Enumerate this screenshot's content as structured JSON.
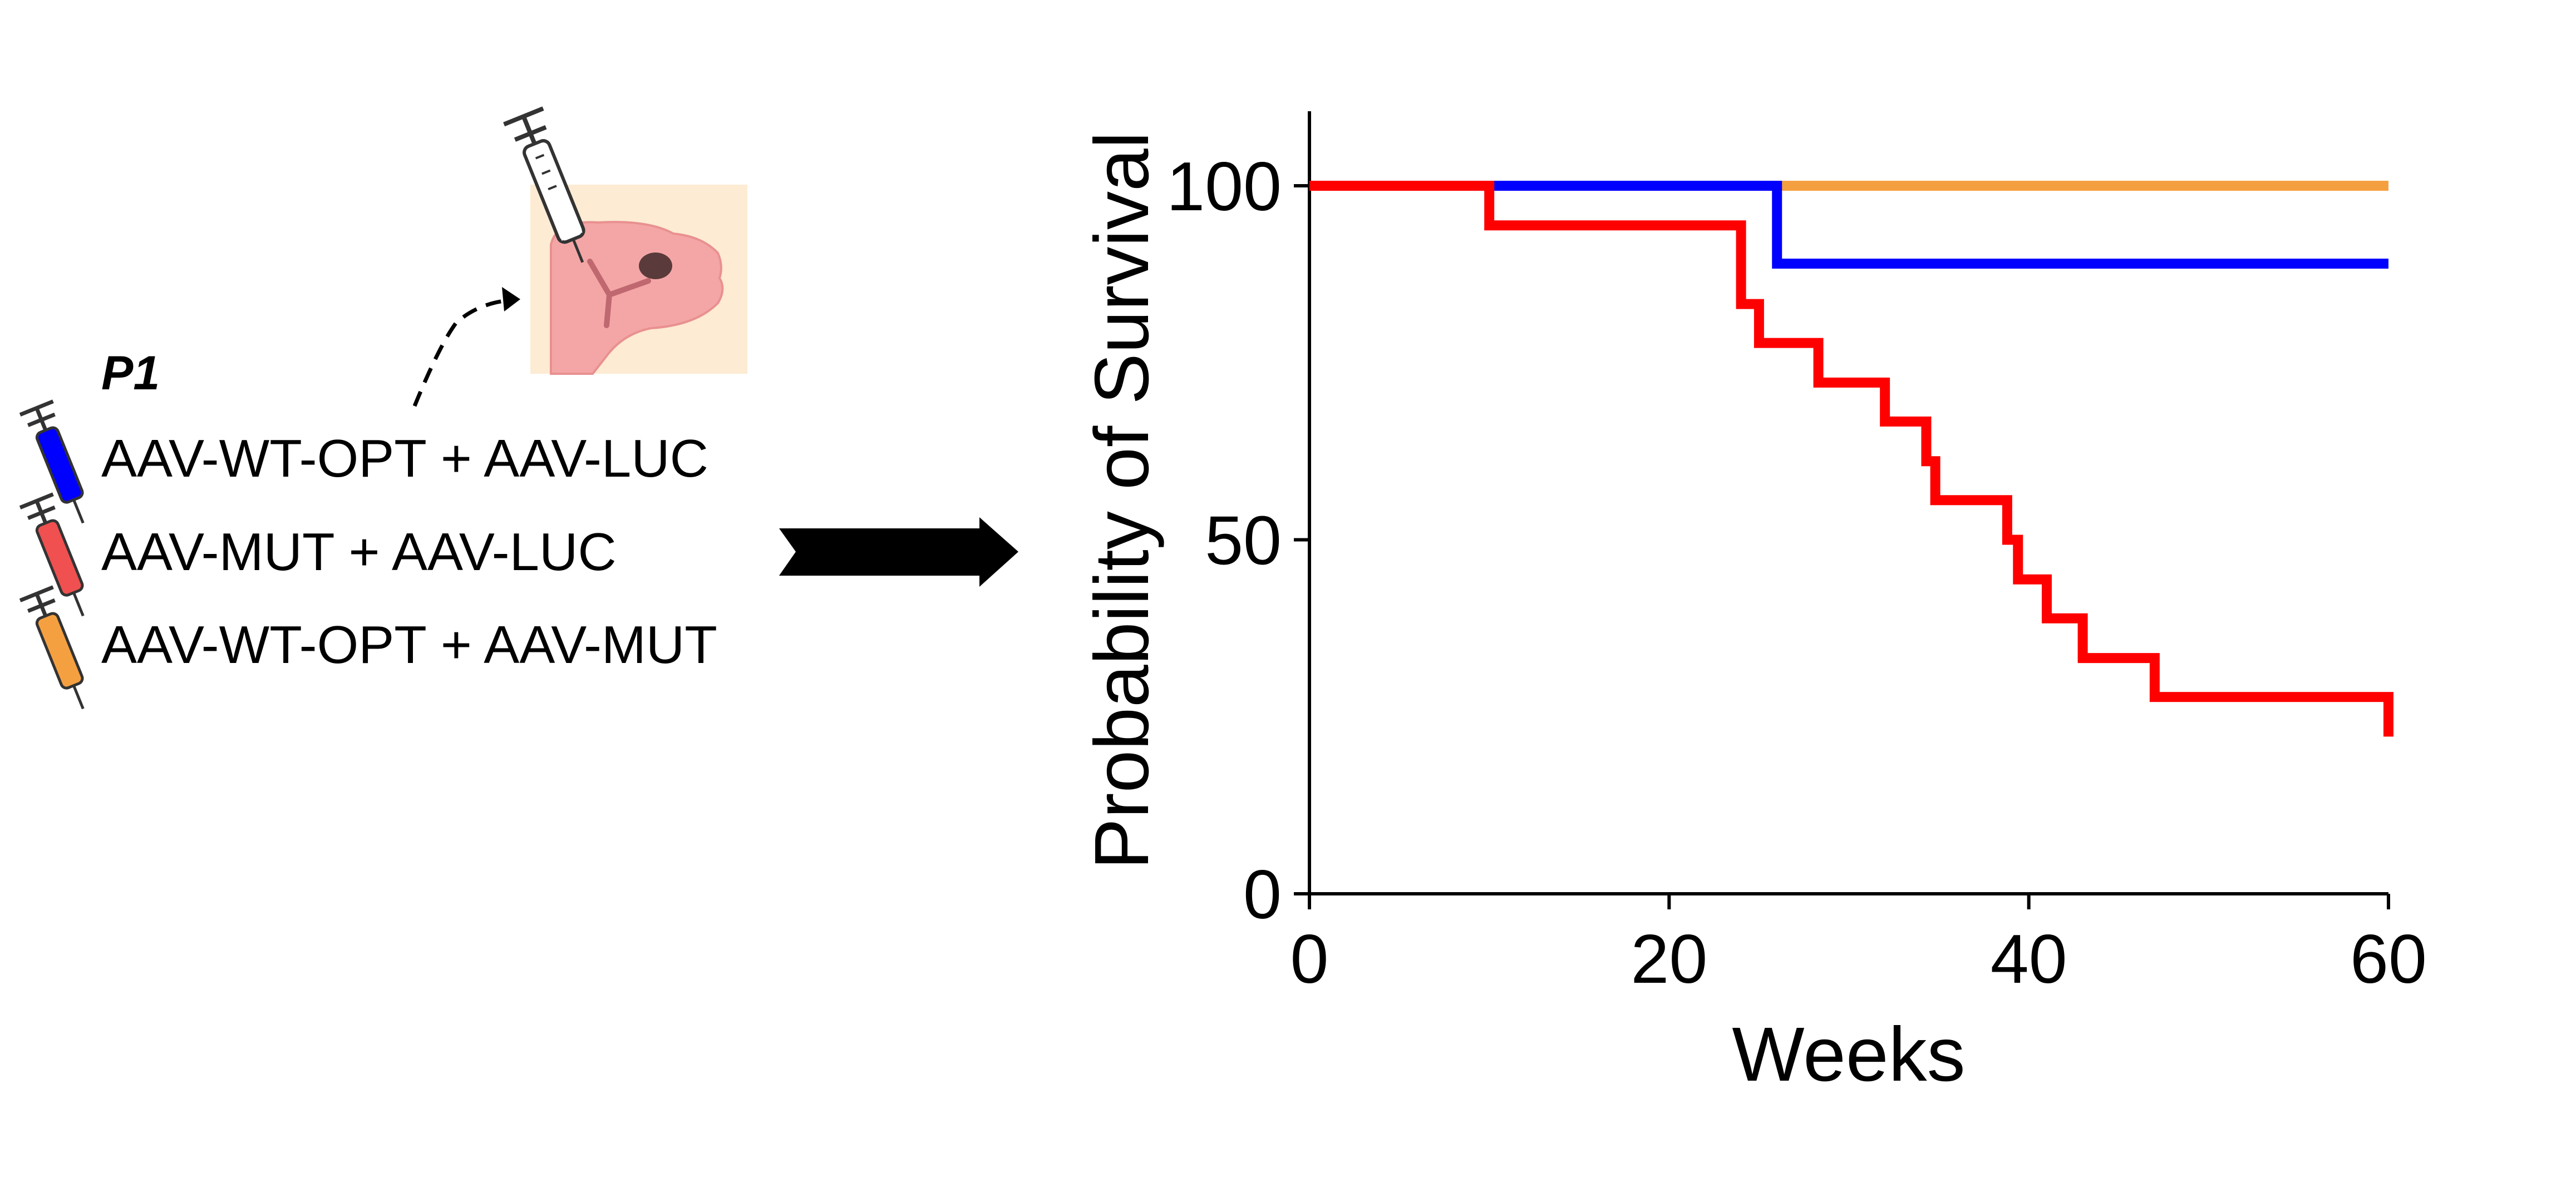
{
  "diagram": {
    "timepoint_label": "P1",
    "groups": [
      {
        "label": "AAV-WT-OPT + AAV-LUC",
        "syringe_color": "#0000ff"
      },
      {
        "label": "AAV-MUT + AAV-LUC",
        "syringe_color": "#f05050"
      },
      {
        "label": "AAV-WT-OPT + AAV-MUT",
        "syringe_color": "#f5a040"
      }
    ],
    "colors": {
      "pup_skin": "#f4a6a6",
      "pup_background": "#fdebd3",
      "arrow": "#000000"
    }
  },
  "chart_data": {
    "type": "line",
    "step": true,
    "title": "",
    "xlabel": "Weeks",
    "ylabel": "Probability of Survival",
    "xlim": [
      0,
      60
    ],
    "ylim": [
      0,
      110
    ],
    "xticks": [
      0,
      20,
      40,
      60
    ],
    "yticks": [
      0,
      50,
      100
    ],
    "grid": false,
    "series": [
      {
        "color": "#f5a040",
        "x": [
          0,
          60
        ],
        "y": [
          100,
          100
        ]
      },
      {
        "color": "#0000ff",
        "x": [
          0,
          26,
          60
        ],
        "y": [
          100,
          89,
          89
        ]
      },
      {
        "color": "#ff0000",
        "x": [
          0,
          10,
          24,
          25,
          28.3,
          32,
          34.3,
          34.8,
          38.8,
          39.4,
          41,
          43,
          47,
          60
        ],
        "y": [
          100,
          94.4,
          83.3,
          77.8,
          72.2,
          66.7,
          61.1,
          55.6,
          50,
          44.4,
          38.9,
          33.3,
          27.8,
          22.2
        ]
      }
    ]
  }
}
